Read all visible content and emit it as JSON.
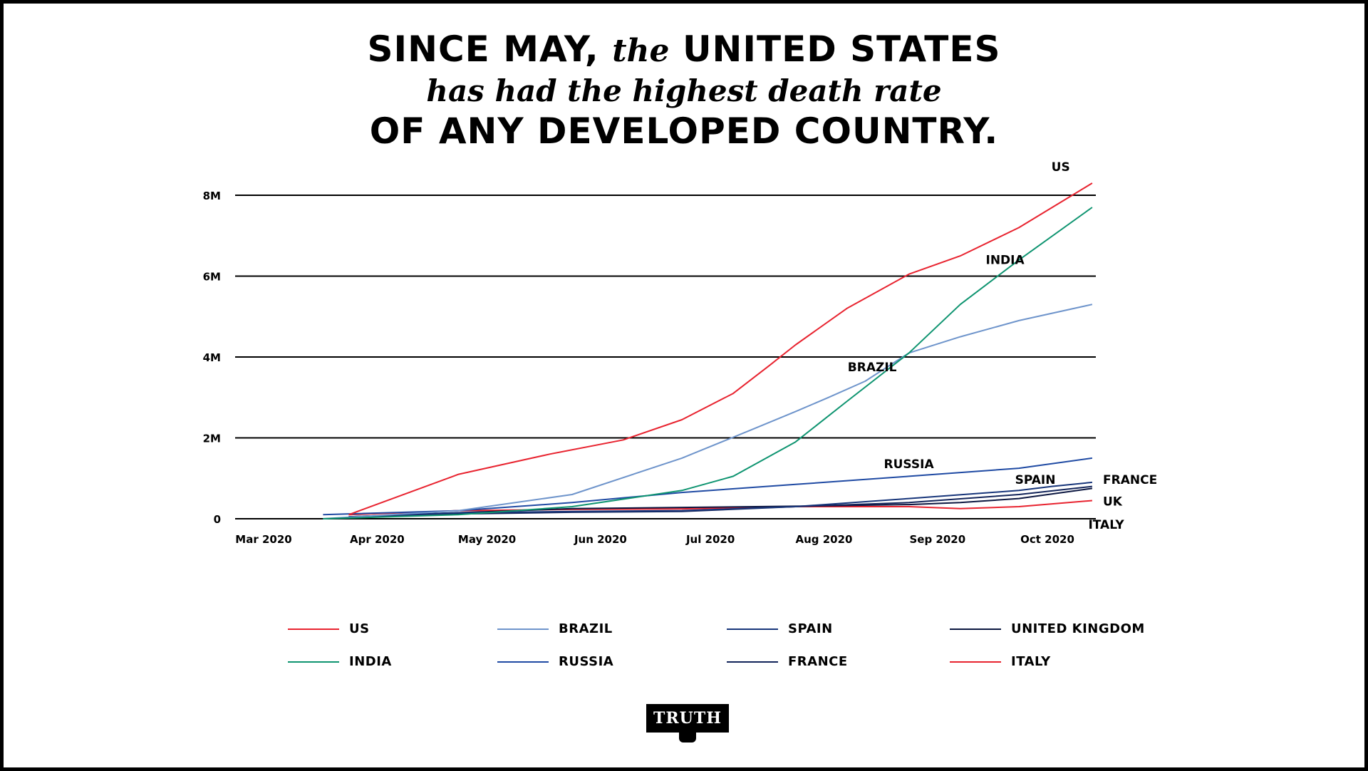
{
  "title": {
    "line1_a": "SINCE MAY,",
    "line1_b": "the",
    "line1_c": "UNITED STATES",
    "line2": "has had the highest death rate",
    "line3": "OF ANY DEVELOPED COUNTRY."
  },
  "logo": {
    "text": "TRUTH"
  },
  "chart_data": {
    "type": "line",
    "title": "SINCE MAY, the UNITED STATES has had the highest death rate OF ANY DEVELOPED COUNTRY.",
    "xlabel": "",
    "ylabel": "",
    "x_ticks": [
      "Mar 2020",
      "Apr 2020",
      "May 2020",
      "Jun 2020",
      "Jul 2020",
      "Aug 2020",
      "Sep 2020",
      "Oct 2020"
    ],
    "y_ticks": [
      "0",
      "2M",
      "4M",
      "6M",
      "8M"
    ],
    "ylim": [
      0,
      8000000
    ],
    "xlim": [
      "2020-03-01",
      "2020-10-22"
    ],
    "grid": "horizontal",
    "legend_position": "bottom",
    "series": [
      {
        "name": "US",
        "color": "#E8232F",
        "line_label": "US",
        "points": [
          [
            "2020-04-01",
            100000
          ],
          [
            "2020-05-01",
            1100000
          ],
          [
            "2020-05-26",
            1600000
          ],
          [
            "2020-06-15",
            1950000
          ],
          [
            "2020-07-01",
            2450000
          ],
          [
            "2020-07-15",
            3100000
          ],
          [
            "2020-07-25",
            3800000
          ],
          [
            "2020-08-01",
            4300000
          ],
          [
            "2020-08-15",
            5200000
          ],
          [
            "2020-09-01",
            6050000
          ],
          [
            "2020-09-15",
            6500000
          ],
          [
            "2020-10-01",
            7200000
          ],
          [
            "2020-10-21",
            8300000
          ]
        ]
      },
      {
        "name": "INDIA",
        "color": "#0E9470",
        "line_label": "INDIA",
        "points": [
          [
            "2020-03-25",
            0
          ],
          [
            "2020-05-01",
            100000
          ],
          [
            "2020-06-01",
            300000
          ],
          [
            "2020-07-01",
            700000
          ],
          [
            "2020-07-15",
            1050000
          ],
          [
            "2020-08-01",
            1900000
          ],
          [
            "2020-08-15",
            2900000
          ],
          [
            "2020-09-01",
            4100000
          ],
          [
            "2020-09-15",
            5300000
          ],
          [
            "2020-10-01",
            6400000
          ],
          [
            "2020-10-21",
            7700000
          ]
        ]
      },
      {
        "name": "BRAZIL",
        "color": "#6E94CB",
        "line_label": "BRAZIL",
        "points": [
          [
            "2020-03-25",
            0
          ],
          [
            "2020-05-01",
            200000
          ],
          [
            "2020-06-01",
            600000
          ],
          [
            "2020-07-01",
            1500000
          ],
          [
            "2020-07-20",
            2200000
          ],
          [
            "2020-08-01",
            2650000
          ],
          [
            "2020-08-10",
            3000000
          ],
          [
            "2020-08-20",
            3400000
          ],
          [
            "2020-09-01",
            4100000
          ],
          [
            "2020-09-15",
            4500000
          ],
          [
            "2020-10-01",
            4900000
          ],
          [
            "2020-10-21",
            5300000
          ]
        ]
      },
      {
        "name": "RUSSIA",
        "color": "#1F4AA3",
        "line_label": "RUSSIA",
        "points": [
          [
            "2020-03-25",
            100000
          ],
          [
            "2020-05-01",
            200000
          ],
          [
            "2020-06-01",
            400000
          ],
          [
            "2020-07-01",
            650000
          ],
          [
            "2020-08-01",
            850000
          ],
          [
            "2020-09-01",
            1050000
          ],
          [
            "2020-10-01",
            1250000
          ],
          [
            "2020-10-21",
            1500000
          ]
        ]
      },
      {
        "name": "SPAIN",
        "color": "#17357A",
        "line_label": "SPAIN",
        "points": [
          [
            "2020-04-01",
            50000
          ],
          [
            "2020-05-01",
            150000
          ],
          [
            "2020-06-01",
            180000
          ],
          [
            "2020-07-01",
            200000
          ],
          [
            "2020-08-01",
            300000
          ],
          [
            "2020-09-01",
            500000
          ],
          [
            "2020-10-01",
            700000
          ],
          [
            "2020-10-10",
            800000
          ],
          [
            "2020-10-21",
            900000
          ]
        ]
      },
      {
        "name": "FRANCE",
        "color": "#12245A",
        "line_label": "FRANCE",
        "points": [
          [
            "2020-04-01",
            50000
          ],
          [
            "2020-05-01",
            120000
          ],
          [
            "2020-06-01",
            160000
          ],
          [
            "2020-07-01",
            180000
          ],
          [
            "2020-08-01",
            300000
          ],
          [
            "2020-09-01",
            400000
          ],
          [
            "2020-10-01",
            600000
          ],
          [
            "2020-10-21",
            800000
          ]
        ]
      },
      {
        "name": "UNITED KINGDOM",
        "color": "#0B1640",
        "line_label": "UK",
        "points": [
          [
            "2020-04-01",
            50000
          ],
          [
            "2020-05-01",
            150000
          ],
          [
            "2020-06-01",
            250000
          ],
          [
            "2020-07-01",
            280000
          ],
          [
            "2020-08-01",
            310000
          ],
          [
            "2020-09-01",
            350000
          ],
          [
            "2020-09-15",
            400000
          ],
          [
            "2020-10-01",
            500000
          ],
          [
            "2020-10-21",
            750000
          ]
        ]
      },
      {
        "name": "ITALY",
        "color": "#E8232F",
        "line_label": "ITALY",
        "points": [
          [
            "2020-04-01",
            100000
          ],
          [
            "2020-05-01",
            200000
          ],
          [
            "2020-06-01",
            230000
          ],
          [
            "2020-07-01",
            245000
          ],
          [
            "2020-08-01",
            300000
          ],
          [
            "2020-09-01",
            300000
          ],
          [
            "2020-09-15",
            250000
          ],
          [
            "2020-10-01",
            300000
          ],
          [
            "2020-10-21",
            450000
          ]
        ]
      }
    ]
  }
}
